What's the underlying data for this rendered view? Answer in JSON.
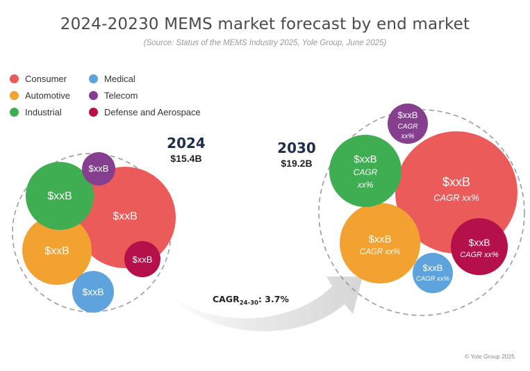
{
  "title": "2024-20230 MEMS market forecast by end market",
  "subtitle": "(Source: Status of the MEMS Industry 2025, Yole Group, June 2025)",
  "legend": [
    {
      "label": "Consumer",
      "color": "#ea5b59"
    },
    {
      "label": "Automotive",
      "color": "#f2a231"
    },
    {
      "label": "Industrial",
      "color": "#3fae52"
    },
    {
      "label": "Medical",
      "color": "#5fa3dc"
    },
    {
      "label": "Telecom",
      "color": "#853f8e"
    },
    {
      "label": "Defense and Aerospace",
      "color": "#b5104a"
    }
  ],
  "years": [
    {
      "year": "2024",
      "total": "$15.4B"
    },
    {
      "year": "2030",
      "total": "$19.2B"
    }
  ],
  "cagr": {
    "prefix": "CAGR",
    "sub": "24-30",
    "suffix": ": 3.7%"
  },
  "copyright": "© Yole Group 2025",
  "chart_data": [
    {
      "type": "bubble",
      "year": "2024",
      "total": "$15.4B",
      "bubbles": [
        {
          "market": "Consumer",
          "value_label": "$xxB"
        },
        {
          "market": "Automotive",
          "value_label": "$xxB"
        },
        {
          "market": "Industrial",
          "value_label": "$xxB"
        },
        {
          "market": "Medical",
          "value_label": "$xxB"
        },
        {
          "market": "Telecom",
          "value_label": "$xxB"
        },
        {
          "market": "Defense and Aerospace",
          "value_label": "$xxB"
        }
      ]
    },
    {
      "type": "bubble",
      "year": "2030",
      "total": "$19.2B",
      "bubbles": [
        {
          "market": "Consumer",
          "value_label": "$xxB",
          "cagr_label": "CAGR xx%"
        },
        {
          "market": "Automotive",
          "value_label": "$xxB",
          "cagr_label": "CAGR xx%"
        },
        {
          "market": "Industrial",
          "value_label": "$xxB",
          "cagr_label": "CAGR xx%"
        },
        {
          "market": "Medical",
          "value_label": "$xxB",
          "cagr_label": "CAGR xx%"
        },
        {
          "market": "Telecom",
          "value_label": "$xxB",
          "cagr_label": "CAGR xx%"
        },
        {
          "market": "Defense and Aerospace",
          "value_label": "$xxB",
          "cagr_label": "CAGR xx%"
        }
      ]
    }
  ]
}
